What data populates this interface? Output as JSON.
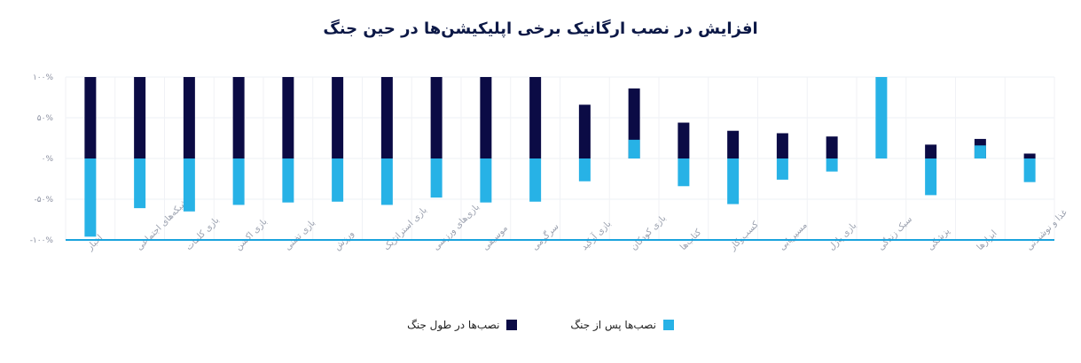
{
  "chart_data": {
    "type": "bar",
    "title": "افزایش در نصب ارگانیک برخی اپلیکیشن‌ها در حین جنگ",
    "categories": [
      "اخبار",
      "شبکه‌های اجتماعی",
      "بازی کلمات",
      "بازی اکشن",
      "بازی تفننی",
      "ورزش",
      "بازی استراتژیک",
      "بازی‌های ورزشی",
      "موسیقی",
      "سرگرمی",
      "بازی آرکید",
      "بازی کودکان",
      "کتاب‌ها",
      "کسب‌وکار",
      "مسیریابی",
      "بازی پازل",
      "سبک زندگی",
      "پزشکی",
      "ابزارها",
      "غذا و نوشیدنی"
    ],
    "series": [
      {
        "name": "نصب‌ها در طول جنگ",
        "color": "#0b0b45",
        "values": [
          100,
          100,
          100,
          100,
          100,
          100,
          100,
          100,
          100,
          100,
          66,
          86,
          44,
          34,
          31,
          27,
          0,
          17,
          24,
          6
        ]
      },
      {
        "name": "نصب‌ها پس از جنگ",
        "color": "#27b2e6",
        "values": [
          -96,
          -61,
          -65,
          -57,
          -54,
          -53,
          -57,
          -48,
          -54,
          -53,
          -28,
          23,
          -34,
          -56,
          -26,
          -16,
          100,
          -45,
          16,
          -29
        ]
      }
    ],
    "ylim": [
      -100,
      100
    ],
    "yticks": [
      {
        "value": 100,
        "label": "۱۰۰%"
      },
      {
        "value": 50,
        "label": "۵۰%"
      },
      {
        "value": 0,
        "label": "۰%"
      },
      {
        "value": -50,
        "label": "-۵۰%"
      },
      {
        "value": -100,
        "label": "-۱۰۰%"
      }
    ],
    "xlabel": "",
    "ylabel": "",
    "grid": true,
    "legend_position": "bottom"
  }
}
